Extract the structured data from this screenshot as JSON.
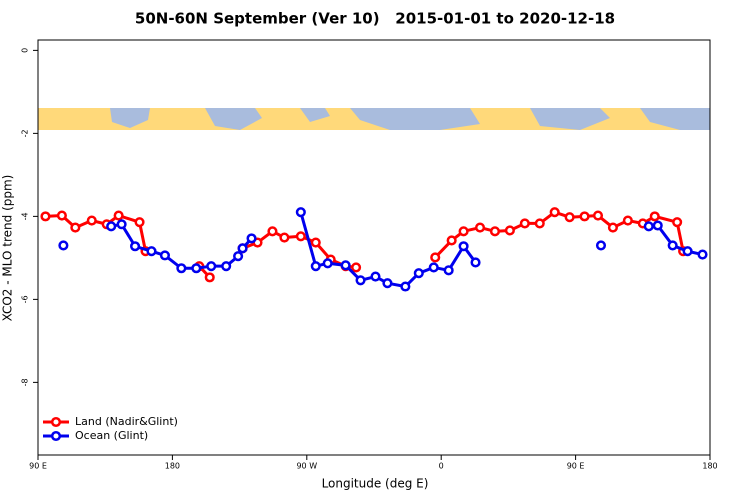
{
  "chart_data": {
    "type": "line",
    "title": "50N-60N September (Ver 10)   2015-01-01 to 2020-12-18",
    "x_label": "Longitude (deg E)",
    "y_label": "XCO2 - MLO trend (ppm)",
    "xlim": [
      90,
      540
    ],
    "xticks": [
      {
        "value": 90,
        "label": "90 E"
      },
      180,
      {
        "value": 270,
        "label": "90 W"
      },
      {
        "value": 360,
        "label": "0"
      },
      {
        "value": 450,
        "label": "90 E"
      },
      {
        "value": 540,
        "label": "180"
      }
    ],
    "ylim": [
      -9.75,
      0.25
    ],
    "yticks": [
      0,
      -2,
      -4,
      -6,
      -8
    ],
    "grid": false,
    "legend": "bottom-left",
    "series": [
      {
        "name": "Land (Nadir&Glint)",
        "color": "#ff0000",
        "x": [
          95,
          106,
          115,
          126,
          136,
          144,
          158,
          162,
          null,
          198,
          205,
          null,
          227,
          237,
          247,
          255,
          266,
          276,
          286,
          296,
          303,
          null,
          356,
          367,
          375,
          386,
          396,
          406,
          416,
          426,
          436,
          446,
          456,
          465,
          475,
          485,
          495,
          503,
          518,
          522
        ],
        "values": [
          -4.0,
          -3.98,
          -4.27,
          -4.1,
          -4.19,
          -3.98,
          -4.14,
          -4.84,
          null,
          -5.2,
          -5.47,
          null,
          -4.77,
          -4.63,
          -4.36,
          -4.51,
          -4.48,
          -4.63,
          -5.04,
          -5.2,
          -5.23,
          null,
          -4.99,
          -4.58,
          -4.36,
          -4.27,
          -4.36,
          -4.34,
          -4.17,
          -4.17,
          -3.9,
          -4.02,
          -4.0,
          -3.98,
          -4.27,
          -4.1,
          -4.17,
          -4.0,
          -4.14,
          -4.84
        ]
      },
      {
        "name": "Ocean (Glint)",
        "color": "#0000ee",
        "x": [
          107,
          null,
          139,
          146,
          155,
          166,
          175,
          186,
          196,
          206,
          216,
          224,
          227,
          233,
          null,
          266,
          276,
          284,
          296,
          306,
          316,
          324,
          336,
          345,
          355,
          365,
          375,
          383,
          null,
          467,
          null,
          499,
          505,
          515,
          525,
          535
        ],
        "values": [
          -4.7,
          null,
          -4.24,
          -4.19,
          -4.72,
          -4.84,
          -4.94,
          -5.25,
          -5.25,
          -5.2,
          -5.2,
          -4.96,
          -4.77,
          -4.53,
          null,
          -3.9,
          -5.2,
          -5.13,
          -5.18,
          -5.54,
          -5.45,
          -5.61,
          -5.69,
          -5.37,
          -5.23,
          -5.3,
          -4.72,
          -5.11,
          null,
          -4.7,
          null,
          -4.24,
          -4.22,
          -4.7,
          -4.84,
          -4.92
        ]
      }
    ]
  }
}
